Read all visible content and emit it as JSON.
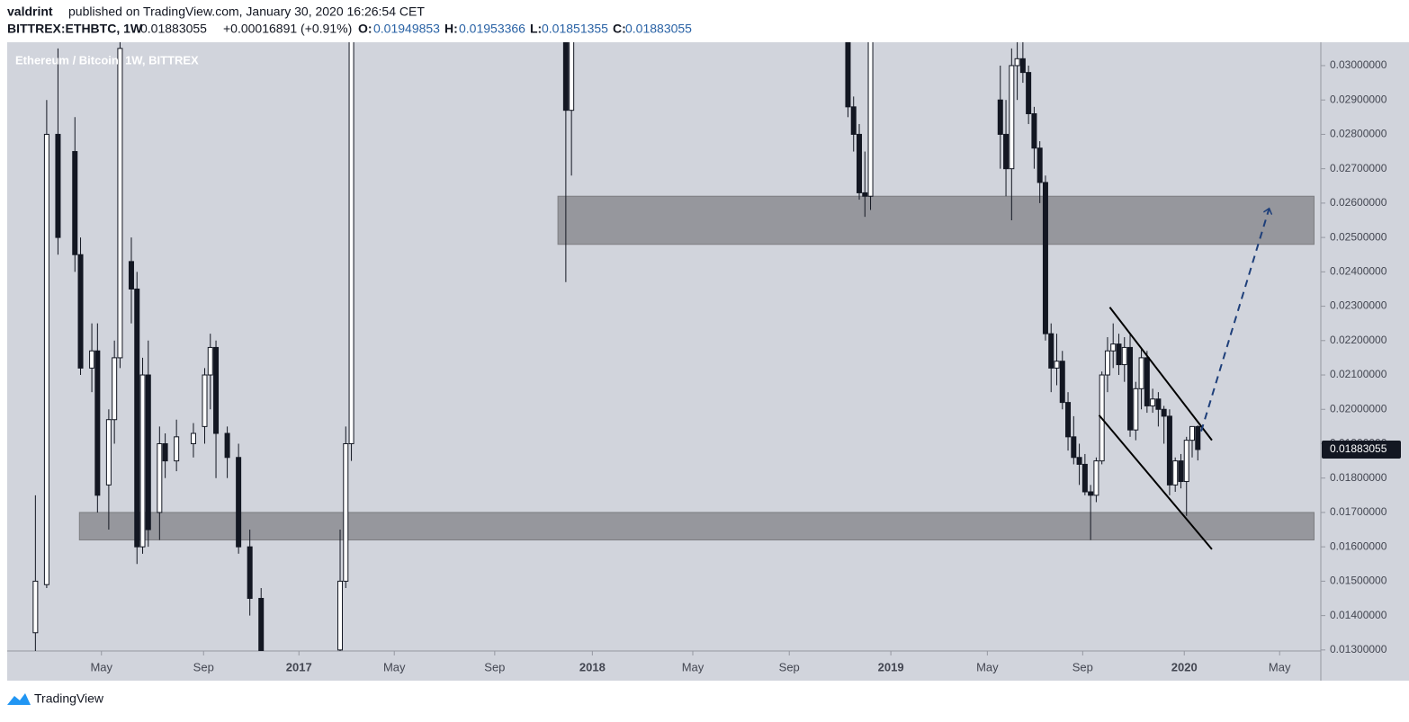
{
  "header": {
    "author": "valdrint",
    "published": "published on TradingView.com, January 30, 2020 16:26:54 CET",
    "symbol": "BITTREX:ETHBTC, 1W",
    "change": "+0.00016891 (+0.91%)",
    "open_label": "O:",
    "high_label": "H:",
    "low_label": "L:",
    "close_label": "C:",
    "legend": "Ethereum / Bitcoin, 1W, BITTREX",
    "footer": "TradingView"
  },
  "chart_data": {
    "type": "candlestick",
    "xlim": [
      0,
      232.8
    ],
    "ylim": [
      0.01297,
      0.03047
    ],
    "yticks": [
      {
        "value": 0.03,
        "label": "0.03000000"
      },
      {
        "value": 0.029,
        "label": "0.02900000"
      },
      {
        "value": 0.028,
        "label": "0.02800000"
      },
      {
        "value": 0.027,
        "label": "0.02700000"
      },
      {
        "value": 0.026,
        "label": "0.02600000"
      },
      {
        "value": 0.025,
        "label": "0.02500000"
      },
      {
        "value": 0.024,
        "label": "0.02400000"
      },
      {
        "value": 0.023,
        "label": "0.02300000"
      },
      {
        "value": 0.022,
        "label": "0.02200000"
      },
      {
        "value": 0.021,
        "label": "0.02100000"
      },
      {
        "value": 0.02,
        "label": "0.02000000"
      },
      {
        "value": 0.019,
        "label": "0.01900000"
      },
      {
        "value": 0.018,
        "label": "0.01800000"
      },
      {
        "value": 0.017,
        "label": "0.01700000"
      },
      {
        "value": 0.016,
        "label": "0.01600000"
      },
      {
        "value": 0.015,
        "label": "0.01500000"
      },
      {
        "value": 0.014,
        "label": "0.01400000"
      },
      {
        "value": 0.013,
        "label": "0.01300000"
      }
    ],
    "xticks": [
      {
        "value": 16.7,
        "label": "May"
      },
      {
        "value": 34.8,
        "label": "Sep"
      },
      {
        "value": 51.7,
        "label": "2017"
      },
      {
        "value": 68.6,
        "label": "May"
      },
      {
        "value": 86.4,
        "label": "Sep"
      },
      {
        "value": 103.7,
        "label": "2018"
      },
      {
        "value": 121.5,
        "label": "May"
      },
      {
        "value": 138.6,
        "label": "Sep"
      },
      {
        "value": 156.6,
        "label": "2019"
      },
      {
        "value": 173.7,
        "label": "May"
      },
      {
        "value": 190.6,
        "label": "Sep"
      },
      {
        "value": 208.6,
        "label": "2020"
      },
      {
        "value": 225.5,
        "label": "May"
      }
    ],
    "up_color": "#ffffff",
    "down_color": "#131722",
    "x": [
      5,
      7,
      9,
      12,
      13,
      15,
      16,
      18,
      19,
      20,
      22,
      23,
      24,
      25,
      27,
      28,
      30,
      33,
      35,
      36,
      37,
      39,
      41,
      43,
      45,
      59,
      60,
      61,
      99,
      100,
      149,
      150,
      151,
      152,
      153,
      176,
      177,
      178,
      179,
      180,
      181,
      182,
      183,
      184,
      185,
      186,
      187,
      188,
      189,
      190,
      191,
      192,
      193,
      194,
      195,
      196,
      197,
      198,
      199,
      200,
      201,
      202,
      203,
      204,
      205,
      206,
      207,
      208,
      209,
      210,
      211
    ],
    "open": [
      0.0135,
      0.0149,
      0.028,
      0.0275,
      0.0245,
      0.0212,
      0.0217,
      0.0178,
      0.0197,
      0.0215,
      0.0243,
      0.0235,
      0.016,
      0.021,
      0.017,
      0.019,
      0.0185,
      0.019,
      0.0195,
      0.021,
      0.0218,
      0.0193,
      0.0186,
      0.016,
      0.0145,
      0.013,
      0.015,
      0.019,
      0.032,
      0.0287,
      0.031,
      0.0288,
      0.028,
      0.0263,
      0.0262,
      0.029,
      0.028,
      0.027,
      0.03,
      0.0302,
      0.0298,
      0.0286,
      0.0276,
      0.0266,
      0.0222,
      0.0212,
      0.0214,
      0.0202,
      0.0192,
      0.0186,
      0.0184,
      0.0176,
      0.0175,
      0.0185,
      0.021,
      0.0217,
      0.0219,
      0.0213,
      0.0218,
      0.0194,
      0.0206,
      0.0215,
      0.0201,
      0.0203,
      0.02,
      0.0198,
      0.0178,
      0.0185,
      0.0179,
      0.0191,
      0.01949853
    ],
    "high": [
      0.0175,
      0.029,
      0.0305,
      0.0285,
      0.025,
      0.0225,
      0.0225,
      0.02,
      0.022,
      0.031,
      0.025,
      0.024,
      0.0215,
      0.022,
      0.0195,
      0.0193,
      0.0197,
      0.0196,
      0.0212,
      0.0222,
      0.022,
      0.0195,
      0.019,
      0.0165,
      0.0148,
      0.0165,
      0.0195,
      0.032,
      0.0325,
      0.032,
      0.0315,
      0.0291,
      0.0283,
      0.0275,
      0.032,
      0.03,
      0.029,
      0.0305,
      0.031,
      0.031,
      0.03,
      0.0288,
      0.0278,
      0.0268,
      0.0225,
      0.0222,
      0.0217,
      0.0205,
      0.0198,
      0.019,
      0.0187,
      0.0178,
      0.0186,
      0.0211,
      0.0221,
      0.0225,
      0.0222,
      0.0221,
      0.0222,
      0.0208,
      0.0218,
      0.0217,
      0.0206,
      0.0205,
      0.0201,
      0.02,
      0.0186,
      0.0187,
      0.0192,
      0.0195,
      0.01953366
    ],
    "low": [
      0.0125,
      0.0148,
      0.0245,
      0.024,
      0.021,
      0.0205,
      0.017,
      0.0165,
      0.019,
      0.0212,
      0.0225,
      0.0155,
      0.0158,
      0.016,
      0.0162,
      0.018,
      0.0182,
      0.0186,
      0.019,
      0.02,
      0.018,
      0.018,
      0.0158,
      0.014,
      0.0125,
      0.0128,
      0.0148,
      0.0185,
      0.0237,
      0.0268,
      0.0285,
      0.0275,
      0.0261,
      0.0256,
      0.0258,
      0.027,
      0.0262,
      0.0255,
      0.029,
      0.0295,
      0.0283,
      0.027,
      0.026,
      0.022,
      0.0205,
      0.0207,
      0.02,
      0.0188,
      0.0184,
      0.0178,
      0.0175,
      0.0162,
      0.0173,
      0.0184,
      0.0205,
      0.0212,
      0.021,
      0.0208,
      0.0192,
      0.0191,
      0.02,
      0.0199,
      0.0199,
      0.0195,
      0.019,
      0.0175,
      0.0176,
      0.0177,
      0.0169,
      0.0186,
      0.01851355
    ],
    "close": [
      0.015,
      0.028,
      0.025,
      0.0245,
      0.0212,
      0.0217,
      0.0175,
      0.0197,
      0.0215,
      0.0305,
      0.0235,
      0.016,
      0.021,
      0.0165,
      0.019,
      0.0185,
      0.0192,
      0.0193,
      0.021,
      0.0218,
      0.0193,
      0.0186,
      0.016,
      0.0145,
      0.0128,
      0.015,
      0.019,
      0.031,
      0.0287,
      0.0315,
      0.0288,
      0.028,
      0.0263,
      0.0262,
      0.0318,
      0.028,
      0.027,
      0.03,
      0.0302,
      0.0298,
      0.0286,
      0.0276,
      0.0266,
      0.0222,
      0.0212,
      0.0214,
      0.0202,
      0.0192,
      0.0186,
      0.0184,
      0.0176,
      0.0175,
      0.0185,
      0.021,
      0.0217,
      0.0219,
      0.0213,
      0.0218,
      0.0194,
      0.0206,
      0.0215,
      0.0201,
      0.0203,
      0.02,
      0.0198,
      0.0178,
      0.0185,
      0.0179,
      0.0191,
      0.0195,
      0.01883055
    ],
    "zones": [
      {
        "x": [
          97.6,
          231.6
        ],
        "y": [
          0.0248,
          0.0262
        ]
      },
      {
        "x": [
          12.8,
          231.6
        ],
        "y": [
          0.0162,
          0.017
        ]
      }
    ],
    "trendlines": [
      {
        "x": [
          195.4,
          213.5
        ],
        "y": [
          0.02297,
          0.0191
        ],
        "style": "solid",
        "color": "#000000"
      },
      {
        "x": [
          193.5,
          213.5
        ],
        "y": [
          0.01983,
          0.01593
        ],
        "style": "solid",
        "color": "#000000"
      },
      {
        "x": [
          211.6,
          223.6
        ],
        "y": [
          0.01936,
          0.02582
        ],
        "style": "dashed",
        "color": "#1e3f7a"
      }
    ]
  }
}
